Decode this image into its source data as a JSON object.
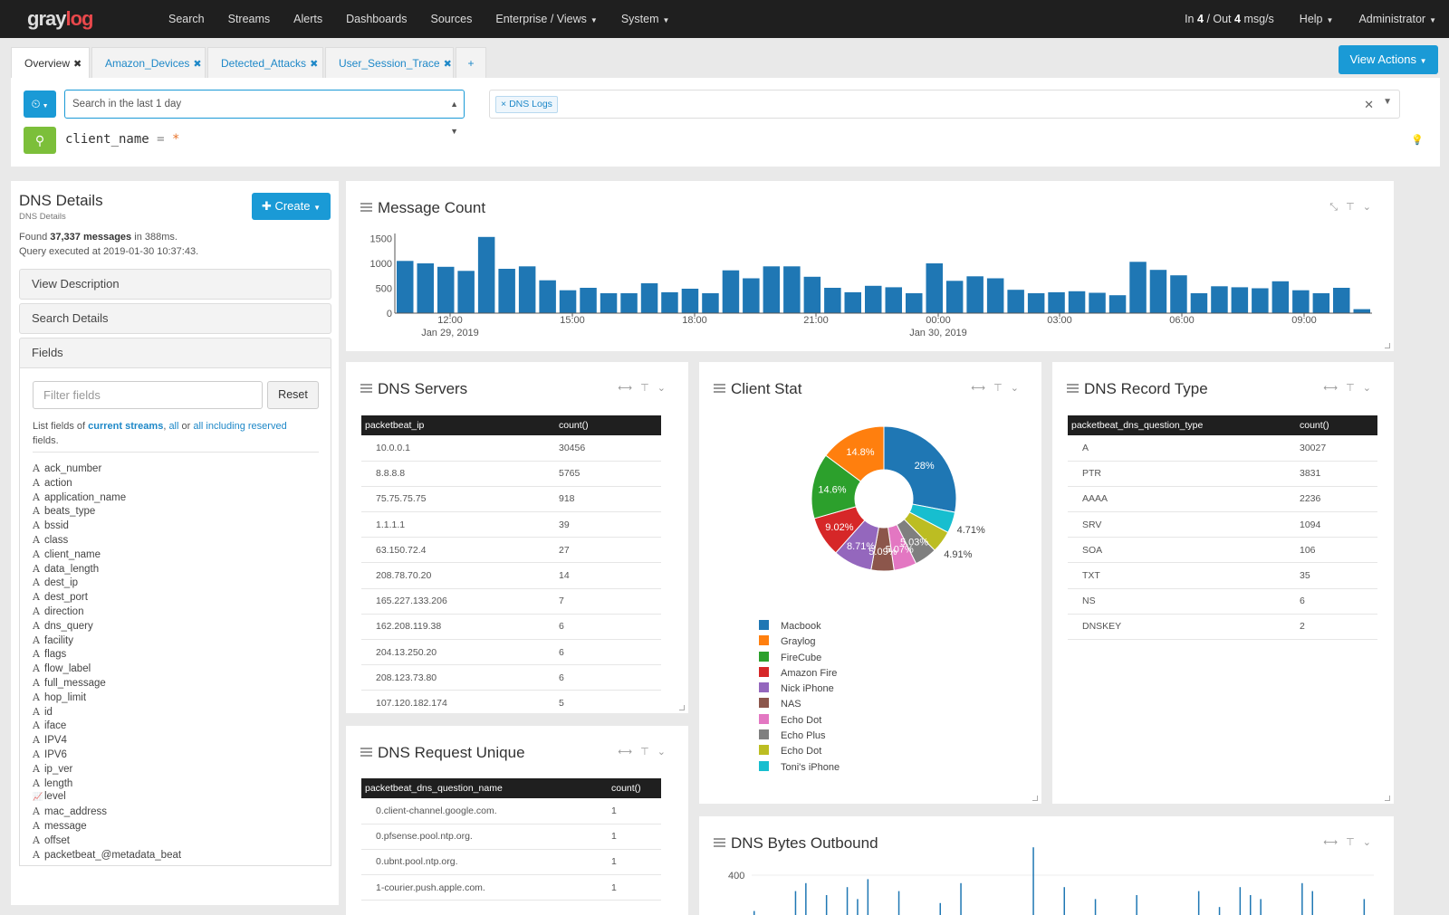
{
  "topnav": {
    "logo_a": "gray",
    "logo_b": "log",
    "items": [
      "Search",
      "Streams",
      "Alerts",
      "Dashboards",
      "Sources",
      "Enterprise / Views",
      "System"
    ],
    "throughput_in_label": "In",
    "throughput_in": "4",
    "throughput_mid": "/ Out",
    "throughput_out": "4",
    "throughput_unit": "msg/s",
    "help": "Help",
    "user": "Administrator"
  },
  "tabs": [
    {
      "label": "Overview",
      "active": true
    },
    {
      "label": "Amazon_Devices",
      "active": false
    },
    {
      "label": "Detected_Attacks",
      "active": false
    },
    {
      "label": "User_Session_Trace",
      "active": false
    }
  ],
  "tab_add": "+",
  "view_actions": "View Actions",
  "search": {
    "time_range": "Search in the last 1 day",
    "stream_tag": "DNS Logs",
    "query_field": "client_name",
    "query_op": "=",
    "query_value": "*"
  },
  "details": {
    "title": "DNS Details",
    "subtitle": "DNS Details",
    "create": "Create",
    "found_prefix": "Found",
    "found_count": "37,337 messages",
    "found_suffix": "in 388ms.",
    "executed": "Query executed at 2019-01-30 10:37:43.",
    "view_description": "View Description",
    "search_details": "Search Details",
    "fields_header": "Fields",
    "filter_placeholder": "Filter fields",
    "reset": "Reset",
    "list_prefix": "List fields of",
    "list_current": "current streams",
    "list_sep1": ",",
    "list_all": "all",
    "list_or": "or",
    "list_reserved": "all including reserved",
    "list_suffix": "fields.",
    "fields": [
      {
        "type": "A",
        "name": "ack_number"
      },
      {
        "type": "A",
        "name": "action"
      },
      {
        "type": "A",
        "name": "application_name"
      },
      {
        "type": "A",
        "name": "beats_type"
      },
      {
        "type": "A",
        "name": "bssid"
      },
      {
        "type": "A",
        "name": "class"
      },
      {
        "type": "A",
        "name": "client_name"
      },
      {
        "type": "A",
        "name": "data_length"
      },
      {
        "type": "A",
        "name": "dest_ip"
      },
      {
        "type": "A",
        "name": "dest_port"
      },
      {
        "type": "A",
        "name": "direction"
      },
      {
        "type": "A",
        "name": "dns_query"
      },
      {
        "type": "A",
        "name": "facility"
      },
      {
        "type": "A",
        "name": "flags"
      },
      {
        "type": "A",
        "name": "flow_label"
      },
      {
        "type": "A",
        "name": "full_message"
      },
      {
        "type": "A",
        "name": "hop_limit"
      },
      {
        "type": "A",
        "name": "id"
      },
      {
        "type": "A",
        "name": "iface"
      },
      {
        "type": "A",
        "name": "IPV4"
      },
      {
        "type": "A",
        "name": "IPV6"
      },
      {
        "type": "A",
        "name": "ip_ver"
      },
      {
        "type": "A",
        "name": "length"
      },
      {
        "type": "chart",
        "name": "level"
      },
      {
        "type": "A",
        "name": "mac_address"
      },
      {
        "type": "A",
        "name": "message"
      },
      {
        "type": "A",
        "name": "offset"
      },
      {
        "type": "A",
        "name": "packetbeat_@metadata_beat"
      }
    ]
  },
  "message_count": {
    "title": "Message Count",
    "y_ticks": [
      "1500",
      "1000",
      "500",
      "0"
    ],
    "x_ticks": [
      {
        "time": "12:00",
        "date": "Jan 29, 2019"
      },
      {
        "time": "15:00",
        "date": ""
      },
      {
        "time": "18:00",
        "date": ""
      },
      {
        "time": "21:00",
        "date": ""
      },
      {
        "time": "00:00",
        "date": "Jan 30, 2019"
      },
      {
        "time": "03:00",
        "date": ""
      },
      {
        "time": "06:00",
        "date": ""
      },
      {
        "time": "09:00",
        "date": ""
      }
    ]
  },
  "dns_servers": {
    "title": "DNS Servers",
    "columns": [
      "packetbeat_ip",
      "count()"
    ],
    "rows": [
      [
        "10.0.0.1",
        "30456"
      ],
      [
        "8.8.8.8",
        "5765"
      ],
      [
        "75.75.75.75",
        "918"
      ],
      [
        "1.1.1.1",
        "39"
      ],
      [
        "63.150.72.4",
        "27"
      ],
      [
        "208.78.70.20",
        "14"
      ],
      [
        "165.227.133.206",
        "7"
      ],
      [
        "162.208.119.38",
        "6"
      ],
      [
        "204.13.250.20",
        "6"
      ],
      [
        "208.123.73.80",
        "6"
      ],
      [
        "107.120.182.174",
        "5"
      ]
    ]
  },
  "dns_request_unique": {
    "title": "DNS Request Unique",
    "columns": [
      "packetbeat_dns_question_name",
      "count()"
    ],
    "rows": [
      [
        "0.client-channel.google.com.",
        "1"
      ],
      [
        "0.pfsense.pool.ntp.org.",
        "1"
      ],
      [
        "0.ubnt.pool.ntp.org.",
        "1"
      ],
      [
        "1-courier.push.apple.com.",
        "1"
      ]
    ]
  },
  "client_stat": {
    "title": "Client Stat",
    "legend": [
      {
        "name": "Macbook",
        "color": "#1f77b4"
      },
      {
        "name": "Graylog",
        "color": "#ff7f0e"
      },
      {
        "name": "FireCube",
        "color": "#2ca02c"
      },
      {
        "name": "Amazon Fire",
        "color": "#d62728"
      },
      {
        "name": "Nick iPhone",
        "color": "#9467bd"
      },
      {
        "name": "NAS",
        "color": "#8c564b"
      },
      {
        "name": "Echo Dot",
        "color": "#e377c2"
      },
      {
        "name": "Echo Plus",
        "color": "#7f7f7f"
      },
      {
        "name": "Echo Dot",
        "color": "#bcbd22"
      },
      {
        "name": "Toni's iPhone",
        "color": "#17becf"
      }
    ]
  },
  "dns_record_type": {
    "title": "DNS Record Type",
    "columns": [
      "packetbeat_dns_question_type",
      "count()"
    ],
    "rows": [
      [
        "A",
        "30027"
      ],
      [
        "PTR",
        "3831"
      ],
      [
        "AAAA",
        "2236"
      ],
      [
        "SRV",
        "1094"
      ],
      [
        "SOA",
        "106"
      ],
      [
        "TXT",
        "35"
      ],
      [
        "NS",
        "6"
      ],
      [
        "DNSKEY",
        "2"
      ]
    ]
  },
  "dns_bytes_outbound": {
    "title": "DNS Bytes Outbound",
    "y_tick": "400"
  },
  "chart_data": [
    {
      "type": "bar",
      "title": "Message Count",
      "ylim": [
        0,
        1600
      ],
      "values": [
        1050,
        1000,
        930,
        850,
        1530,
        890,
        940,
        660,
        460,
        510,
        400,
        400,
        600,
        420,
        490,
        400,
        860,
        700,
        940,
        940,
        730,
        510,
        420,
        550,
        520,
        400,
        1000,
        650,
        740,
        700,
        470,
        400,
        420,
        440,
        410,
        360,
        1030,
        870,
        760,
        400,
        540,
        520,
        500,
        640,
        460,
        400,
        510,
        80
      ]
    },
    {
      "type": "pie",
      "title": "Client Stat",
      "slices": [
        {
          "label": "Macbook",
          "value": 28,
          "label_text": "28%"
        },
        {
          "label": "Toni's iPhone",
          "value": 4.71,
          "label_text": "4.71%"
        },
        {
          "label": "Echo Dot",
          "value": 4.91,
          "label_text": "4.91%"
        },
        {
          "label": "Echo Plus",
          "value": 5.03,
          "label_text": "5.03%"
        },
        {
          "label": "Echo Dot",
          "value": 5.07,
          "label_text": "5.07%"
        },
        {
          "label": "NAS",
          "value": 5.09,
          "label_text": "5.09%"
        },
        {
          "label": "Nick iPhone",
          "value": 8.71,
          "label_text": "8.71%"
        },
        {
          "label": "Amazon Fire",
          "value": 9.02,
          "label_text": "9.02%"
        },
        {
          "label": "FireCube",
          "value": 14.6,
          "label_text": "14.6%"
        },
        {
          "label": "Graylog",
          "value": 14.8,
          "label_text": "14.8%"
        }
      ]
    },
    {
      "type": "bar",
      "title": "DNS Bytes Outbound",
      "ylim": [
        0,
        400
      ],
      "values": [
        10,
        0,
        0,
        0,
        60,
        80,
        0,
        50,
        0,
        70,
        40,
        90,
        0,
        0,
        60,
        0,
        0,
        0,
        30,
        0,
        80,
        0,
        0,
        0,
        0,
        0,
        0,
        170,
        0,
        0,
        70,
        0,
        0,
        40,
        0,
        0,
        0,
        50,
        0,
        0,
        0,
        0,
        0,
        60,
        0,
        20,
        0,
        70,
        50,
        40,
        0,
        0,
        0,
        80,
        60,
        0,
        0,
        0,
        0,
        40
      ]
    }
  ]
}
